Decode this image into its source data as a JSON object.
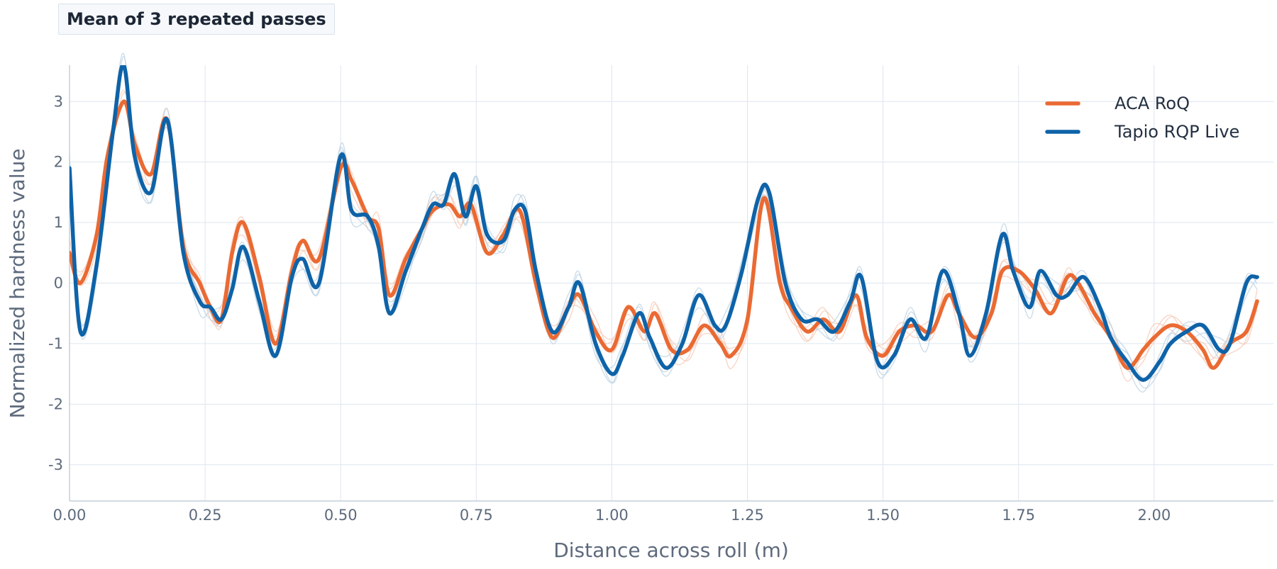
{
  "colors": {
    "background": "#ffffff",
    "grid": "#dde6ef",
    "axis_line": "#c3cfdb",
    "tick_text": "#5d6a7c",
    "aca_roq": "#ea6a33",
    "tapio": "#0e63a8",
    "pass_faint_aca": "#f6c8b3",
    "pass_faint_tapio": "#bcd2e4"
  },
  "chart_data": {
    "type": "line",
    "title": "Mean of 3 repeated passes",
    "xlabel": "Distance across roll (m)",
    "ylabel": "Normalized hardness value",
    "xlim": [
      0,
      2.22
    ],
    "ylim": [
      -3.6,
      3.6
    ],
    "x_ticks": [
      0,
      0.25,
      0.5,
      0.75,
      1.0,
      1.25,
      1.5,
      1.75,
      2.0
    ],
    "x_tick_labels": [
      "0.00",
      "0.25",
      "0.50",
      "0.75",
      "1.00",
      "1.25",
      "1.50",
      "1.75",
      "2.00"
    ],
    "y_ticks": [
      3,
      2,
      1,
      0,
      -1,
      -2,
      -3
    ],
    "y_tick_labels": [
      "3",
      "2",
      "1",
      "0",
      "-1",
      "-2",
      "-3"
    ],
    "grid": true,
    "legend": {
      "position": "top-right"
    },
    "series": [
      {
        "name": "ACA RoQ",
        "color": "#ea6a33",
        "x": [
          0.0,
          0.02,
          0.05,
          0.07,
          0.1,
          0.12,
          0.15,
          0.18,
          0.21,
          0.24,
          0.26,
          0.28,
          0.3,
          0.32,
          0.35,
          0.38,
          0.41,
          0.43,
          0.46,
          0.5,
          0.52,
          0.55,
          0.57,
          0.59,
          0.62,
          0.65,
          0.67,
          0.7,
          0.72,
          0.74,
          0.77,
          0.8,
          0.83,
          0.86,
          0.89,
          0.92,
          0.94,
          0.97,
          1.0,
          1.03,
          1.06,
          1.08,
          1.11,
          1.14,
          1.17,
          1.2,
          1.22,
          1.25,
          1.28,
          1.31,
          1.33,
          1.36,
          1.39,
          1.42,
          1.45,
          1.47,
          1.5,
          1.53,
          1.56,
          1.59,
          1.62,
          1.64,
          1.67,
          1.7,
          1.72,
          1.75,
          1.78,
          1.81,
          1.84,
          1.86,
          1.89,
          1.92,
          1.95,
          1.98,
          2.0,
          2.03,
          2.06,
          2.09,
          2.11,
          2.14,
          2.17,
          2.19
        ],
        "y": [
          0.5,
          0.0,
          0.8,
          2.1,
          3.0,
          2.3,
          1.8,
          2.7,
          0.6,
          0.0,
          -0.4,
          -0.6,
          0.5,
          1.0,
          0.1,
          -1.0,
          0.2,
          0.7,
          0.4,
          1.9,
          1.7,
          1.1,
          0.9,
          -0.2,
          0.4,
          0.9,
          1.2,
          1.3,
          1.1,
          1.3,
          0.5,
          0.8,
          1.2,
          0.0,
          -0.9,
          -0.4,
          -0.2,
          -0.8,
          -1.1,
          -0.4,
          -0.8,
          -0.5,
          -1.1,
          -1.1,
          -0.7,
          -1.0,
          -1.2,
          -0.6,
          1.4,
          0.0,
          -0.4,
          -0.8,
          -0.6,
          -0.8,
          -0.2,
          -0.9,
          -1.2,
          -0.8,
          -0.7,
          -0.8,
          -0.2,
          -0.5,
          -0.9,
          -0.5,
          0.2,
          0.2,
          -0.1,
          -0.5,
          0.1,
          0.0,
          -0.5,
          -0.9,
          -1.4,
          -1.1,
          -0.9,
          -0.7,
          -0.8,
          -1.1,
          -1.4,
          -1.0,
          -0.8,
          -0.3
        ]
      },
      {
        "name": "Tapio RQP Live",
        "color": "#0e63a8",
        "x": [
          0.0,
          0.02,
          0.05,
          0.08,
          0.1,
          0.12,
          0.15,
          0.18,
          0.21,
          0.24,
          0.26,
          0.28,
          0.3,
          0.32,
          0.35,
          0.38,
          0.41,
          0.43,
          0.46,
          0.5,
          0.52,
          0.55,
          0.57,
          0.59,
          0.62,
          0.65,
          0.67,
          0.69,
          0.71,
          0.73,
          0.75,
          0.77,
          0.8,
          0.82,
          0.84,
          0.86,
          0.89,
          0.92,
          0.94,
          0.97,
          1.0,
          1.02,
          1.05,
          1.07,
          1.1,
          1.13,
          1.16,
          1.19,
          1.21,
          1.24,
          1.27,
          1.29,
          1.32,
          1.35,
          1.38,
          1.41,
          1.44,
          1.46,
          1.49,
          1.52,
          1.55,
          1.58,
          1.61,
          1.64,
          1.66,
          1.69,
          1.72,
          1.74,
          1.77,
          1.79,
          1.82,
          1.84,
          1.87,
          1.9,
          1.92,
          1.95,
          1.98,
          2.01,
          2.03,
          2.06,
          2.09,
          2.12,
          2.14,
          2.17,
          2.19
        ],
        "y": [
          1.9,
          -0.8,
          0.3,
          2.5,
          3.6,
          2.1,
          1.5,
          2.7,
          0.5,
          -0.3,
          -0.4,
          -0.6,
          -0.1,
          0.6,
          -0.3,
          -1.2,
          0.1,
          0.4,
          0.0,
          2.1,
          1.2,
          1.1,
          0.6,
          -0.5,
          0.2,
          0.9,
          1.3,
          1.3,
          1.8,
          1.1,
          1.6,
          0.8,
          0.7,
          1.2,
          1.2,
          0.2,
          -0.8,
          -0.4,
          0.0,
          -1.0,
          -1.5,
          -1.2,
          -0.5,
          -0.9,
          -1.4,
          -1.0,
          -0.2,
          -0.7,
          -0.7,
          0.2,
          1.4,
          1.5,
          0.0,
          -0.6,
          -0.6,
          -0.8,
          -0.3,
          0.1,
          -1.3,
          -1.2,
          -0.6,
          -0.9,
          0.2,
          -0.5,
          -1.2,
          -0.5,
          0.8,
          0.2,
          -0.4,
          0.2,
          -0.2,
          -0.2,
          0.1,
          -0.4,
          -0.9,
          -1.3,
          -1.6,
          -1.3,
          -1.0,
          -0.8,
          -0.7,
          -1.1,
          -1.0,
          0.0,
          0.1
        ]
      }
    ]
  }
}
